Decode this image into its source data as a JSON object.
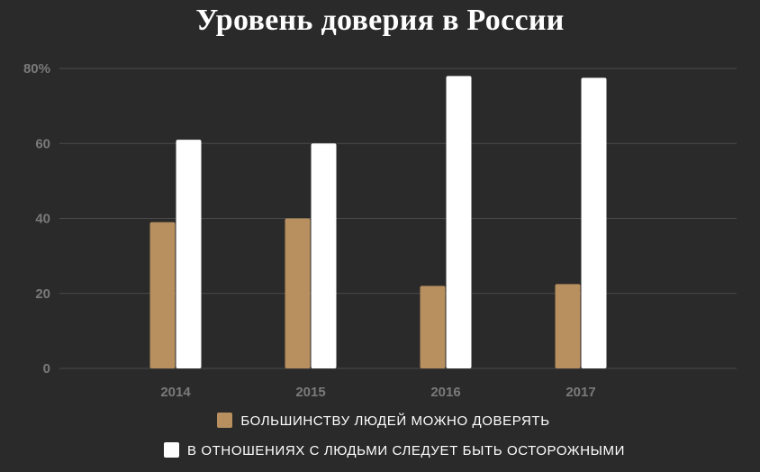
{
  "chart_data": {
    "type": "bar",
    "title": "Уровень доверия в России",
    "categories": [
      "2014",
      "2015",
      "2016",
      "2017"
    ],
    "series": [
      {
        "name": "БОЛЬШИНСТВУ ЛЮДЕЙ МОЖНО ДОВЕРЯТЬ",
        "values": [
          39,
          40,
          22,
          22.5
        ],
        "color": "#b88f5f"
      },
      {
        "name": "В ОТНОШЕНИЯХ С ЛЮДЬМИ СЛЕДУЕТ БЫТЬ ОСТОРОЖНЫМИ",
        "values": [
          61,
          60,
          78,
          77.5
        ],
        "color": "#ffffff"
      }
    ],
    "yticks": [
      "0",
      "20",
      "40",
      "60",
      "80%"
    ],
    "ylim": [
      0,
      80
    ],
    "grid": true,
    "legend_position": "bottom",
    "xlabel": "",
    "ylabel": ""
  },
  "colors": {
    "background": "#2a2a2a",
    "grid": "#4a4a4a",
    "tick_text": "#7a7a7a"
  }
}
